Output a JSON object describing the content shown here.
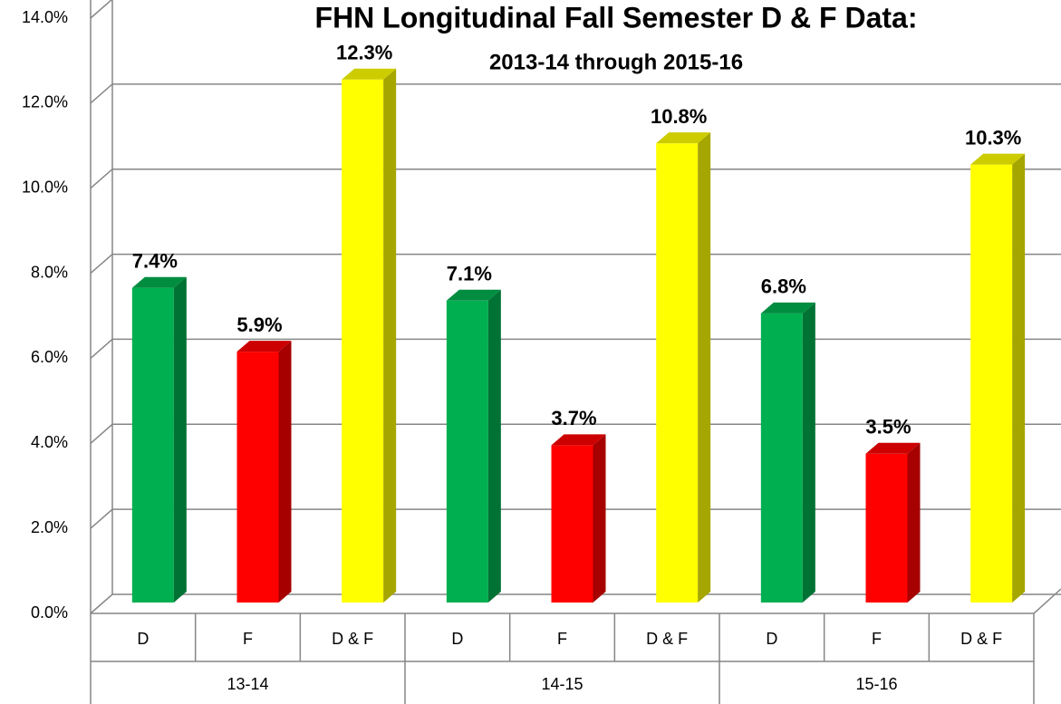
{
  "chart_data": {
    "type": "bar",
    "title": "FHN Longitudinal Fall Semester D & F Data:",
    "subtitle": "2013-14 through 2015-16",
    "categories": [
      "D",
      "F",
      "D & F",
      "D",
      "F",
      "D & F",
      "D",
      "F",
      "D & F"
    ],
    "groups": [
      "13-14",
      "14-15",
      "15-16"
    ],
    "values": [
      7.4,
      5.9,
      12.3,
      7.1,
      3.7,
      10.8,
      6.8,
      3.5,
      10.3
    ],
    "value_labels": [
      "7.4%",
      "5.9%",
      "12.3%",
      "7.1%",
      "3.7%",
      "10.8%",
      "6.8%",
      "3.5%",
      "10.3%"
    ],
    "colors": [
      "#00b050",
      "#ff0000",
      "#ffff00",
      "#00b050",
      "#ff0000",
      "#ffff00",
      "#00b050",
      "#ff0000",
      "#ffff00"
    ],
    "ylim": [
      0,
      14
    ],
    "yticks": [
      {
        "value": 0,
        "label": "0.0%"
      },
      {
        "value": 2,
        "label": "2.0%"
      },
      {
        "value": 4,
        "label": "4.0%"
      },
      {
        "value": 6,
        "label": "6.0%"
      },
      {
        "value": 8,
        "label": "8.0%"
      },
      {
        "value": 10,
        "label": "10.0%"
      },
      {
        "value": 12,
        "label": "12.0%"
      },
      {
        "value": 14,
        "label": "14.0%"
      }
    ],
    "grid": true
  }
}
